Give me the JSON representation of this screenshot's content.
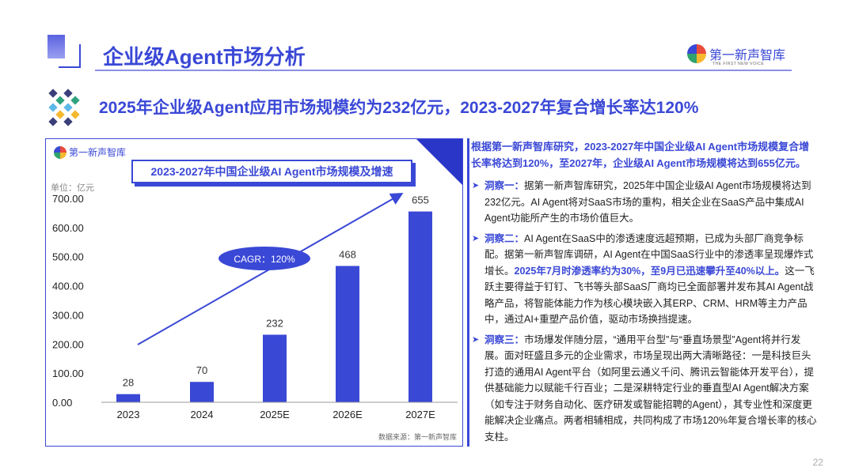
{
  "header": {
    "title": "企业级Agent市场分析",
    "logo_text": "第一新声智库",
    "logo_sub": "THE FIRST NEW VOICE"
  },
  "subtitle": "2025年企业级Agent应用市场规模约为232亿元，2023-2027年复合增长率达120%",
  "chart_data": {
    "type": "bar",
    "title": "2023-2027年中国企业级AI Agent市场规模及增速",
    "ylabel": "单位：亿元",
    "categories": [
      "2023",
      "2024",
      "2025E",
      "2026E",
      "2027E"
    ],
    "values": [
      28,
      70,
      232,
      468,
      655
    ],
    "data_labels": [
      "28",
      "70",
      "232",
      "468",
      "655"
    ],
    "yticks": [
      "0.00",
      "100.00",
      "200.00",
      "300.00",
      "400.00",
      "500.00",
      "600.00",
      "700.00"
    ],
    "ylim": [
      0,
      700
    ],
    "annotation": "CAGR：120%",
    "grid": false,
    "bar_color": "#3a48d6",
    "source": "数据来源：第一新声智库",
    "logo_text": "第一新声智库"
  },
  "right": {
    "headline": "根据第一新声智库研究，2023-2027年中国企业级AI Agent市场规模复合增长率将达到120%，至2027年，企业级AI Agent市场规模将达到655亿元。",
    "items": [
      {
        "label": "洞察一：",
        "text": "据第一新声智库研究，2025年中国企业级AI Agent市场规模将达到232亿元。AI Agent将对SaaS市场的重构，相关企业在SaaS产品中集成AI Agent功能所产生的市场价值巨大。",
        "highlight": "",
        "after": ""
      },
      {
        "label": "洞察二：",
        "text": "AI Agent在SaaS中的渗透速度远超预期，已成为头部厂商竞争标配。据第一新声智库调研，AI Agent在中国SaaS行业中的渗透率呈现爆炸式增长。",
        "highlight": "2025年7月时渗透率约为30%，至9月已迅速攀升至40%以上。",
        "after": "这一飞跃主要得益于钉钉、飞书等头部SaaS厂商均已全面部署并发布其AI Agent战略产品，将智能体能力作为核心模块嵌入其ERP、CRM、HRM等主力产品中，通过AI+重塑产品价值，驱动市场换挡提速。"
      },
      {
        "label": "洞察三：",
        "text": "市场爆发伴随分层，“通用平台型”与“垂直场景型”Agent将并行发展。面对旺盛且多元的企业需求，市场呈现出两大清晰路径：一是科技巨头打造的通用AI Agent平台（如阿里云通义千问、腾讯云智能体开发平台），提供基础能力以赋能千行百业；二是深耕特定行业的垂直型AI Agent解决方案（如专注于财务自动化、医疗研发或智能招聘的Agent），其专业性和深度更能解决企业痛点。两者相辅相成，共同构成了市场120%年复合增长率的核心支柱。",
        "highlight": "",
        "after": ""
      }
    ]
  },
  "page_number": "22"
}
